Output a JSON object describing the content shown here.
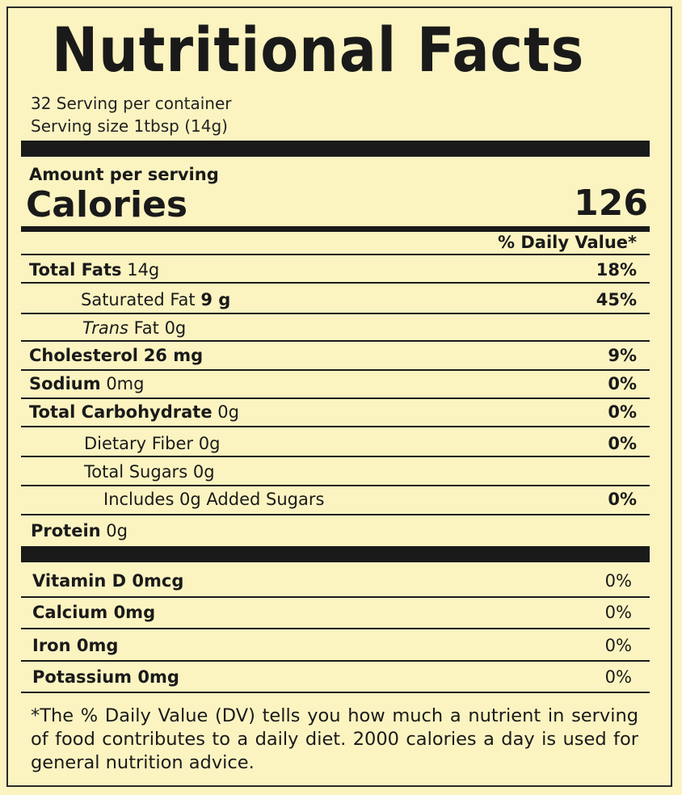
{
  "title": "Nutritional Facts",
  "servings_per_container": "32 Serving per container",
  "serving_size": "Serving size 1tbsp (14g)",
  "amount_per_serving": "Amount per serving",
  "calories_label": "Calories",
  "calories_value": "126",
  "daily_value_header": "% Daily Value*",
  "nutrients": [
    {
      "name": "Total Fats",
      "amount": "14g",
      "pct": "18%"
    },
    {
      "name": "Saturated Fat",
      "amount": "9 g",
      "pct": "45%"
    },
    {
      "name": "Trans",
      "amount": "Fat 0g",
      "pct": ""
    },
    {
      "name": "Cholesterol",
      "amount": "26 mg",
      "pct": "9%"
    },
    {
      "name": "Sodium",
      "amount": "0mg",
      "pct": "0%"
    },
    {
      "name": "Total Carbohydrate",
      "amount": "0g",
      "pct": "0%"
    },
    {
      "name": "Dietary Fiber",
      "amount": "0g",
      "pct": "0%"
    },
    {
      "name": "Total Sugars",
      "amount": "0g",
      "pct": ""
    },
    {
      "name": "Includes 0g Added Sugars",
      "amount": "",
      "pct": "0%"
    },
    {
      "name": "Protein",
      "amount": "0g",
      "pct": ""
    }
  ],
  "vitamins": [
    {
      "label": "Vitamin D 0mcg",
      "pct": "0%"
    },
    {
      "label": "Calcium 0mg",
      "pct": "0%"
    },
    {
      "label": "Iron 0mg",
      "pct": "0%"
    },
    {
      "label": "Potassium 0mg",
      "pct": "0%"
    }
  ],
  "footnote": "*The % Daily Value (DV) tells you how much a nutrient in serving of food contributes to a daily diet. 2000 calories a day is used for general nutrition advice."
}
